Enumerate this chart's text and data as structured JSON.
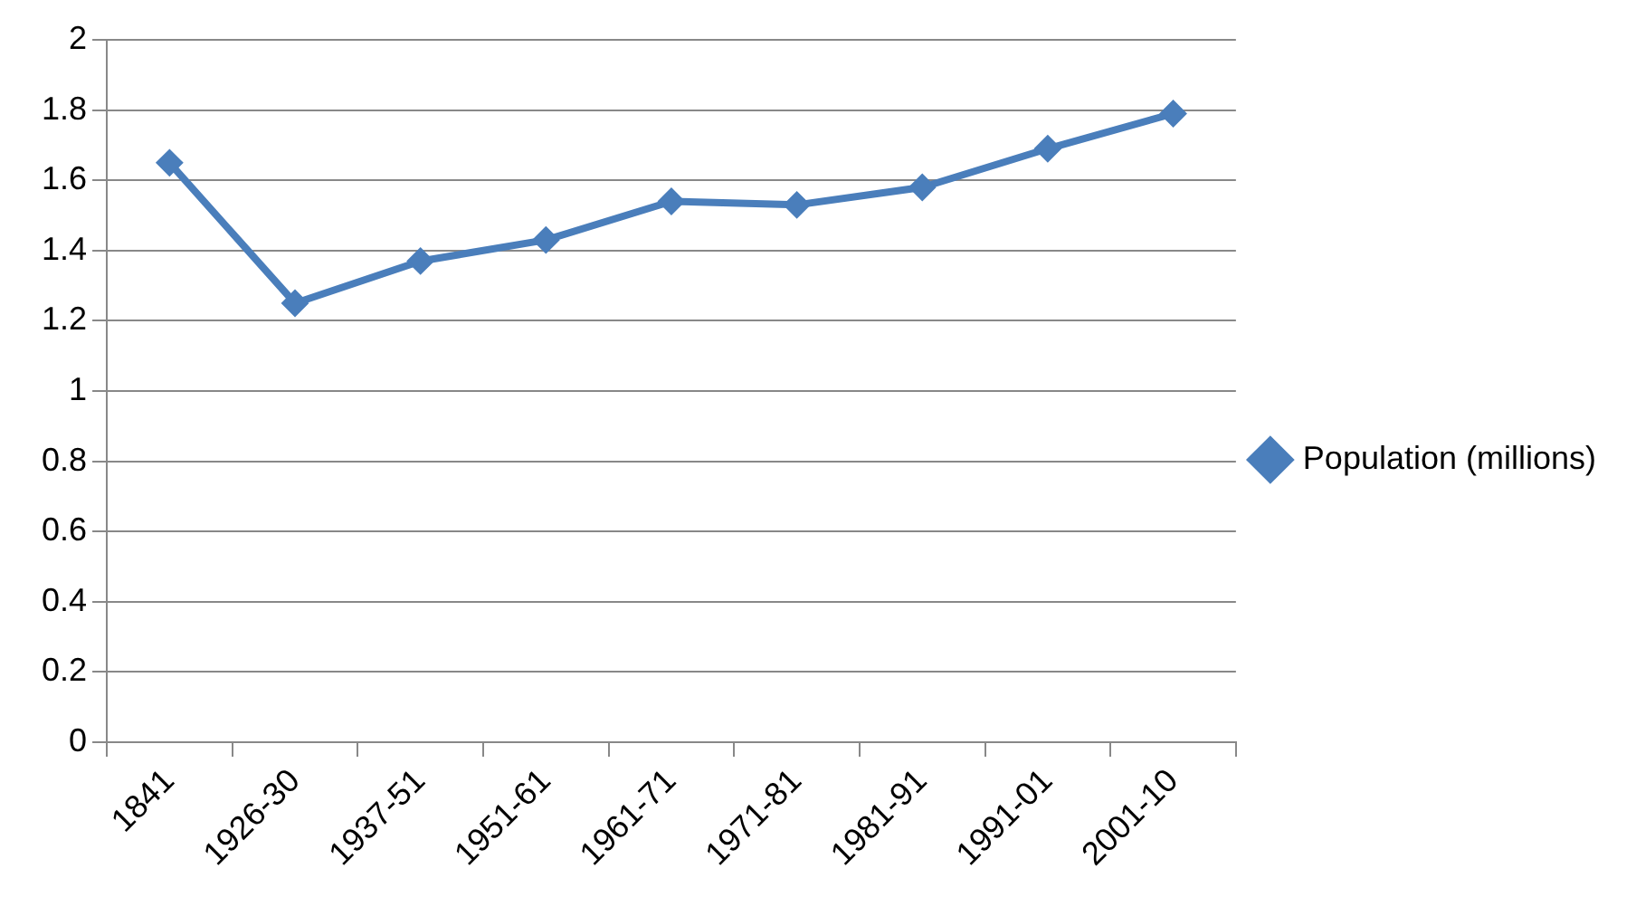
{
  "chart_data": {
    "type": "line",
    "categories": [
      "1841",
      "1926-30",
      "1937-51",
      "1951-61",
      "1961-71",
      "1971-81",
      "1981-91",
      "1991-01",
      "2001-10"
    ],
    "series": [
      {
        "name": "Population (millions)",
        "color": "#4a7ebb",
        "values": [
          1.65,
          1.25,
          1.37,
          1.43,
          1.54,
          1.53,
          1.58,
          1.69,
          1.79
        ]
      }
    ],
    "ylim": [
      0,
      2
    ],
    "yticks": [
      0,
      0.2,
      0.4,
      0.6,
      0.8,
      1,
      1.2,
      1.4,
      1.6,
      1.8,
      2
    ],
    "grid": "y",
    "legend": "right",
    "marker": "diamond",
    "line_style": "solid"
  }
}
